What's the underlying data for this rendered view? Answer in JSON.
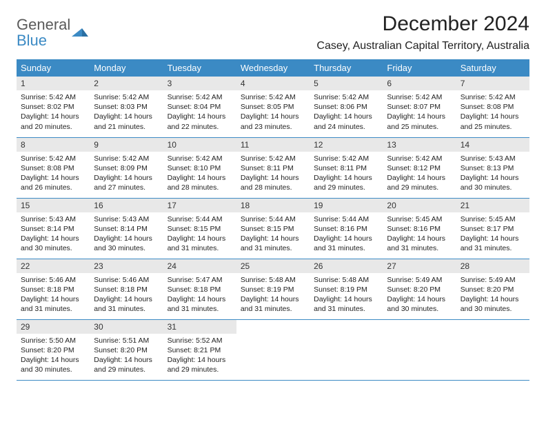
{
  "logo": {
    "line1": "General",
    "line2": "Blue"
  },
  "title": "December 2024",
  "location": "Casey, Australian Capital Territory, Australia",
  "colors": {
    "header_bg": "#3b8ac4",
    "header_fg": "#ffffff",
    "daynum_bg": "#e8e8e8",
    "border": "#3b8ac4",
    "logo_gray": "#5a5a5a",
    "logo_blue": "#3b8ac4"
  },
  "weekdays": [
    "Sunday",
    "Monday",
    "Tuesday",
    "Wednesday",
    "Thursday",
    "Friday",
    "Saturday"
  ],
  "days": [
    {
      "n": 1,
      "sr": "5:42 AM",
      "ss": "8:02 PM",
      "dl": "14 hours and 20 minutes."
    },
    {
      "n": 2,
      "sr": "5:42 AM",
      "ss": "8:03 PM",
      "dl": "14 hours and 21 minutes."
    },
    {
      "n": 3,
      "sr": "5:42 AM",
      "ss": "8:04 PM",
      "dl": "14 hours and 22 minutes."
    },
    {
      "n": 4,
      "sr": "5:42 AM",
      "ss": "8:05 PM",
      "dl": "14 hours and 23 minutes."
    },
    {
      "n": 5,
      "sr": "5:42 AM",
      "ss": "8:06 PM",
      "dl": "14 hours and 24 minutes."
    },
    {
      "n": 6,
      "sr": "5:42 AM",
      "ss": "8:07 PM",
      "dl": "14 hours and 25 minutes."
    },
    {
      "n": 7,
      "sr": "5:42 AM",
      "ss": "8:08 PM",
      "dl": "14 hours and 25 minutes."
    },
    {
      "n": 8,
      "sr": "5:42 AM",
      "ss": "8:08 PM",
      "dl": "14 hours and 26 minutes."
    },
    {
      "n": 9,
      "sr": "5:42 AM",
      "ss": "8:09 PM",
      "dl": "14 hours and 27 minutes."
    },
    {
      "n": 10,
      "sr": "5:42 AM",
      "ss": "8:10 PM",
      "dl": "14 hours and 28 minutes."
    },
    {
      "n": 11,
      "sr": "5:42 AM",
      "ss": "8:11 PM",
      "dl": "14 hours and 28 minutes."
    },
    {
      "n": 12,
      "sr": "5:42 AM",
      "ss": "8:11 PM",
      "dl": "14 hours and 29 minutes."
    },
    {
      "n": 13,
      "sr": "5:42 AM",
      "ss": "8:12 PM",
      "dl": "14 hours and 29 minutes."
    },
    {
      "n": 14,
      "sr": "5:43 AM",
      "ss": "8:13 PM",
      "dl": "14 hours and 30 minutes."
    },
    {
      "n": 15,
      "sr": "5:43 AM",
      "ss": "8:14 PM",
      "dl": "14 hours and 30 minutes."
    },
    {
      "n": 16,
      "sr": "5:43 AM",
      "ss": "8:14 PM",
      "dl": "14 hours and 30 minutes."
    },
    {
      "n": 17,
      "sr": "5:44 AM",
      "ss": "8:15 PM",
      "dl": "14 hours and 31 minutes."
    },
    {
      "n": 18,
      "sr": "5:44 AM",
      "ss": "8:15 PM",
      "dl": "14 hours and 31 minutes."
    },
    {
      "n": 19,
      "sr": "5:44 AM",
      "ss": "8:16 PM",
      "dl": "14 hours and 31 minutes."
    },
    {
      "n": 20,
      "sr": "5:45 AM",
      "ss": "8:16 PM",
      "dl": "14 hours and 31 minutes."
    },
    {
      "n": 21,
      "sr": "5:45 AM",
      "ss": "8:17 PM",
      "dl": "14 hours and 31 minutes."
    },
    {
      "n": 22,
      "sr": "5:46 AM",
      "ss": "8:18 PM",
      "dl": "14 hours and 31 minutes."
    },
    {
      "n": 23,
      "sr": "5:46 AM",
      "ss": "8:18 PM",
      "dl": "14 hours and 31 minutes."
    },
    {
      "n": 24,
      "sr": "5:47 AM",
      "ss": "8:18 PM",
      "dl": "14 hours and 31 minutes."
    },
    {
      "n": 25,
      "sr": "5:48 AM",
      "ss": "8:19 PM",
      "dl": "14 hours and 31 minutes."
    },
    {
      "n": 26,
      "sr": "5:48 AM",
      "ss": "8:19 PM",
      "dl": "14 hours and 31 minutes."
    },
    {
      "n": 27,
      "sr": "5:49 AM",
      "ss": "8:20 PM",
      "dl": "14 hours and 30 minutes."
    },
    {
      "n": 28,
      "sr": "5:49 AM",
      "ss": "8:20 PM",
      "dl": "14 hours and 30 minutes."
    },
    {
      "n": 29,
      "sr": "5:50 AM",
      "ss": "8:20 PM",
      "dl": "14 hours and 30 minutes."
    },
    {
      "n": 30,
      "sr": "5:51 AM",
      "ss": "8:20 PM",
      "dl": "14 hours and 29 minutes."
    },
    {
      "n": 31,
      "sr": "5:52 AM",
      "ss": "8:21 PM",
      "dl": "14 hours and 29 minutes."
    }
  ],
  "labels": {
    "sunrise": "Sunrise:",
    "sunset": "Sunset:",
    "daylight": "Daylight:"
  },
  "layout": {
    "first_weekday_index": 0,
    "total_cells": 35
  }
}
